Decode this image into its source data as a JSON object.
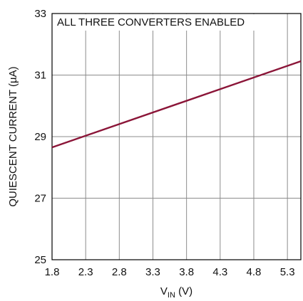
{
  "chart_data": {
    "type": "line",
    "annotation": "ALL THREE CONVERTERS ENABLED",
    "xlabel": {
      "main": "V",
      "sub": "IN",
      "unit": " (V)"
    },
    "ylabel": "QUIESCENT CURRENT (µA)",
    "xlim": [
      1.8,
      5.5
    ],
    "ylim": [
      25,
      33
    ],
    "x_ticks": [
      1.8,
      2.3,
      2.8,
      3.3,
      3.8,
      4.3,
      4.8,
      5.3
    ],
    "x_tick_labels": [
      "1.8",
      "2.3",
      "2.8",
      "3.3",
      "3.8",
      "4.3",
      "4.8",
      "5.3"
    ],
    "y_ticks": [
      25,
      27,
      29,
      31,
      33
    ],
    "y_tick_labels": [
      "25",
      "27",
      "29",
      "31",
      "33"
    ],
    "grid": true,
    "series": [
      {
        "x": [
          1.8,
          5.5
        ],
        "y": [
          28.65,
          31.45
        ],
        "color": "#8b1538"
      }
    ]
  }
}
